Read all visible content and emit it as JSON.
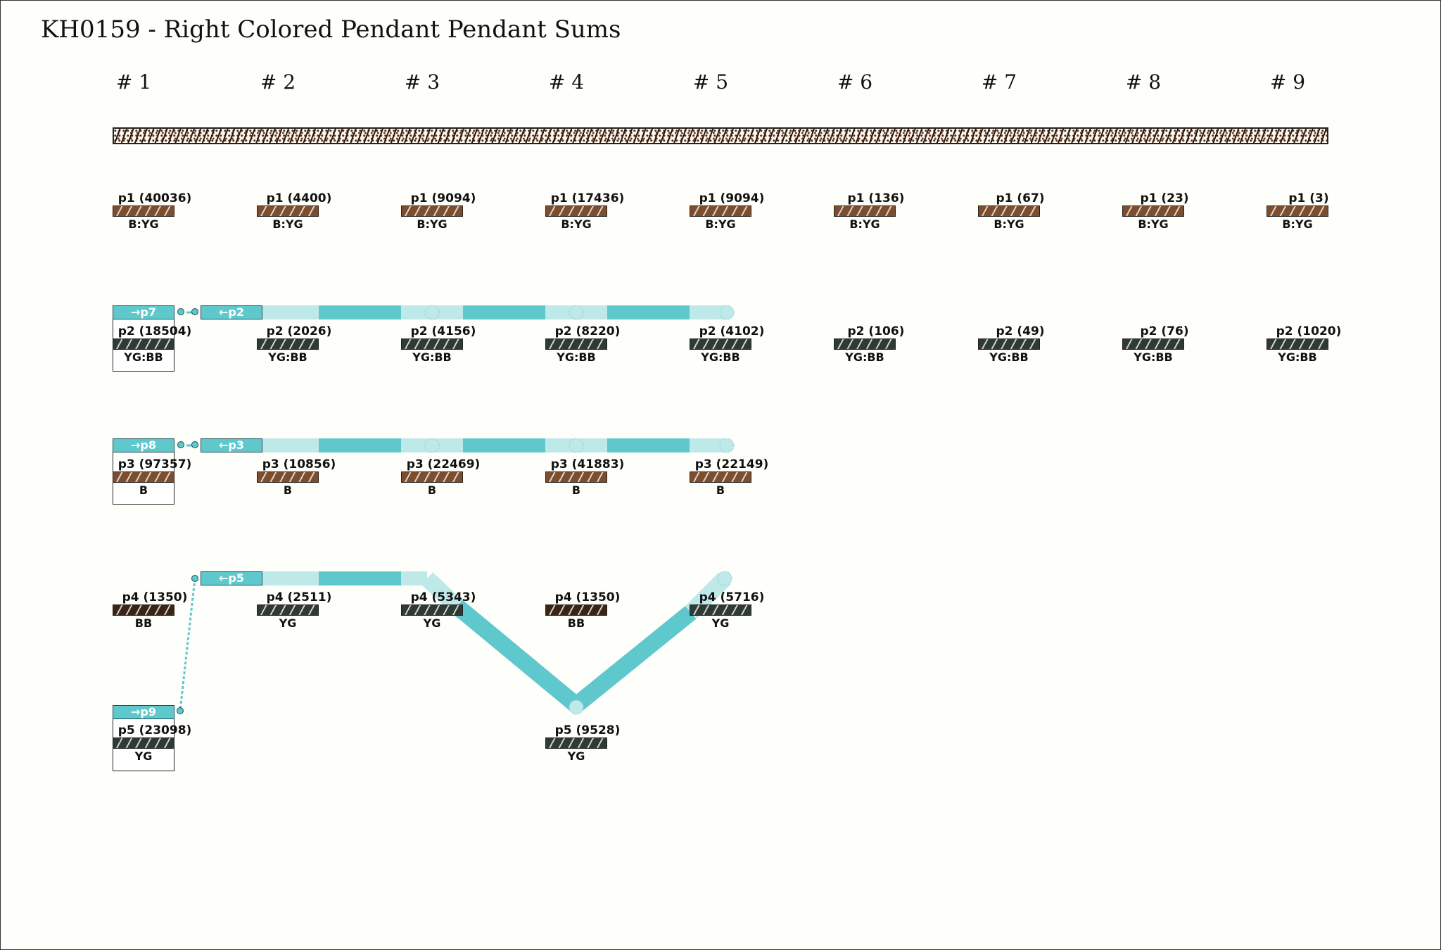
{
  "title": "KH0159 - Right Colored Pendant Pendant Sums",
  "cords": [
    "# 1",
    "# 2",
    "# 3",
    "# 4",
    "# 5",
    "# 6",
    "# 7",
    "# 8",
    "# 9"
  ],
  "colors": {
    "B": "#7d4e2e",
    "YG": "#2f3a34",
    "BB": "#3a2416",
    "link": "#5fc8cc",
    "link_light": "#bfe8e9",
    "primary_cord": "#2b1a10"
  },
  "pendants": [
    [
      {
        "label": "p1 (40036)",
        "color": "B:YG",
        "fill": "B"
      },
      {
        "label": "p2 (18504)",
        "color": "YG:BB",
        "fill": "YG"
      },
      {
        "label": "p3 (97357)",
        "color": "B",
        "fill": "B"
      },
      {
        "label": "p4 (1350)",
        "color": "BB",
        "fill": "BB"
      },
      {
        "label": "p5 (23098)",
        "color": "YG",
        "fill": "YG"
      }
    ],
    [
      {
        "label": "p1 (4400)",
        "color": "B:YG",
        "fill": "B"
      },
      {
        "label": "p2 (2026)",
        "color": "YG:BB",
        "fill": "YG"
      },
      {
        "label": "p3 (10856)",
        "color": "B",
        "fill": "B"
      },
      {
        "label": "p4 (2511)",
        "color": "YG",
        "fill": "YG"
      }
    ],
    [
      {
        "label": "p1 (9094)",
        "color": "B:YG",
        "fill": "B"
      },
      {
        "label": "p2 (4156)",
        "color": "YG:BB",
        "fill": "YG"
      },
      {
        "label": "p3 (22469)",
        "color": "B",
        "fill": "B"
      },
      {
        "label": "p4 (5343)",
        "color": "YG",
        "fill": "YG"
      }
    ],
    [
      {
        "label": "p1 (17436)",
        "color": "B:YG",
        "fill": "B"
      },
      {
        "label": "p2 (8220)",
        "color": "YG:BB",
        "fill": "YG"
      },
      {
        "label": "p3 (41883)",
        "color": "B",
        "fill": "B"
      },
      {
        "label": "p4 (1350)",
        "color": "BB",
        "fill": "BB"
      },
      {
        "label": "p5 (9528)",
        "color": "YG",
        "fill": "YG"
      }
    ],
    [
      {
        "label": "p1 (9094)",
        "color": "B:YG",
        "fill": "B"
      },
      {
        "label": "p2 (4102)",
        "color": "YG:BB",
        "fill": "YG"
      },
      {
        "label": "p3 (22149)",
        "color": "B",
        "fill": "B"
      },
      {
        "label": "p4 (5716)",
        "color": "YG",
        "fill": "YG"
      }
    ],
    [
      {
        "label": "p1 (136)",
        "color": "B:YG",
        "fill": "B"
      },
      {
        "label": "p2 (106)",
        "color": "YG:BB",
        "fill": "YG"
      }
    ],
    [
      {
        "label": "p1 (67)",
        "color": "B:YG",
        "fill": "B"
      },
      {
        "label": "p2 (49)",
        "color": "YG:BB",
        "fill": "YG"
      }
    ],
    [
      {
        "label": "p1 (23)",
        "color": "B:YG",
        "fill": "B"
      },
      {
        "label": "p2 (76)",
        "color": "YG:BB",
        "fill": "YG"
      }
    ],
    [
      {
        "label": "p1 (3)",
        "color": "B:YG",
        "fill": "B"
      },
      {
        "label": "p2 (1020)",
        "color": "YG:BB",
        "fill": "YG"
      }
    ]
  ],
  "sum_tags": {
    "p2_sum": "→p7",
    "p2_group": "←p2",
    "p3_sum": "→p8",
    "p3_group": "←p3",
    "p4_group": "←p5",
    "p5_sum": "→p9"
  }
}
